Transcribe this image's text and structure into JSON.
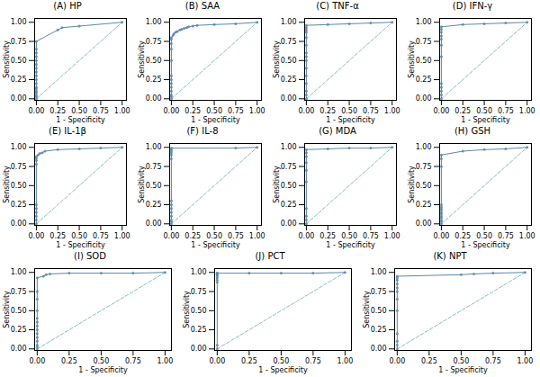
{
  "chart_data": [
    {
      "type": "line",
      "title": "(A) HP",
      "x_label": "1 - Specificity",
      "y_label": "Sensitivity",
      "xlim": [
        -0.02,
        1.05
      ],
      "ylim": [
        -0.02,
        1.05
      ],
      "xticks": [
        {
          "value": 0.0,
          "label": "0.00"
        },
        0.25,
        {
          "value": 0.5,
          "label": "0.50"
        },
        0.75,
        {
          "value": 1.0,
          "label": "1.00"
        }
      ],
      "yticks": [
        {
          "value": 0.0,
          "label": "0.00"
        },
        0.25,
        {
          "value": 0.5,
          "label": "0.50"
        },
        0.75,
        {
          "value": 1.0,
          "label": "1.00"
        }
      ],
      "series": [
        {
          "x": [
            0,
            1
          ],
          "values": [
            0,
            1
          ],
          "color": "#85bfbf",
          "line_style": "dashed"
        },
        {
          "x": [
            0.0,
            0.0,
            0.0,
            0.0,
            0.0,
            0.0,
            0.0,
            0.0,
            0.0,
            0.0,
            0.0,
            0.0,
            0.0,
            0.0,
            0.0,
            0.0,
            0.0,
            0.0,
            0.25,
            0.3,
            0.5,
            1.0
          ],
          "values": [
            0.0,
            0.03,
            0.05,
            0.08,
            0.1,
            0.13,
            0.15,
            0.2,
            0.25,
            0.3,
            0.35,
            0.4,
            0.45,
            0.5,
            0.55,
            0.6,
            0.65,
            0.75,
            0.9,
            0.93,
            0.95,
            1.0
          ],
          "color": "#5b87a8",
          "line_style": "solid",
          "marker": "circle"
        }
      ]
    },
    {
      "type": "line",
      "title": "(B) SAA",
      "x_label": "1 - Specificity",
      "y_label": "Sensitivity",
      "xlim": [
        -0.02,
        1.05
      ],
      "ylim": [
        -0.02,
        1.05
      ],
      "xticks": [
        {
          "value": 0.0,
          "label": "0.00"
        },
        0.25,
        {
          "value": 0.5,
          "label": "0.50"
        },
        0.75,
        {
          "value": 1.0,
          "label": "1.00"
        }
      ],
      "yticks": [
        {
          "value": 0.0,
          "label": "0.00"
        },
        0.25,
        {
          "value": 0.5,
          "label": "0.50"
        },
        0.75,
        {
          "value": 1.0,
          "label": "1.00"
        }
      ],
      "series": [
        {
          "x": [
            0,
            1
          ],
          "values": [
            0,
            1
          ],
          "color": "#85bfbf",
          "line_style": "dashed"
        },
        {
          "x": [
            0.0,
            0.0,
            0.0,
            0.0,
            0.0,
            0.0,
            0.0,
            0.0,
            0.0,
            0.0,
            0.0,
            0.0,
            0.0,
            0.02,
            0.03,
            0.05,
            0.07,
            0.1,
            0.12,
            0.15,
            0.18,
            0.2,
            0.25,
            0.3,
            0.5,
            0.75,
            1.0
          ],
          "values": [
            0.0,
            0.03,
            0.05,
            0.1,
            0.15,
            0.2,
            0.25,
            0.3,
            0.5,
            0.65,
            0.72,
            0.78,
            0.8,
            0.83,
            0.85,
            0.87,
            0.88,
            0.9,
            0.91,
            0.92,
            0.93,
            0.94,
            0.95,
            0.96,
            0.97,
            0.98,
            1.0
          ],
          "color": "#5b87a8",
          "line_style": "solid",
          "marker": "circle"
        }
      ]
    },
    {
      "type": "line",
      "title": "(C) TNF-α",
      "x_label": "1 - Specificity",
      "y_label": "Sensitivity",
      "xlim": [
        -0.02,
        1.05
      ],
      "ylim": [
        -0.02,
        1.05
      ],
      "xticks": [
        {
          "value": 0.0,
          "label": "0.00"
        },
        0.25,
        {
          "value": 0.5,
          "label": "0.50"
        },
        0.75,
        {
          "value": 1.0,
          "label": "1.00"
        }
      ],
      "yticks": [
        {
          "value": 0.0,
          "label": "0.00"
        },
        0.25,
        {
          "value": 0.5,
          "label": "0.50"
        },
        0.75,
        {
          "value": 1.0,
          "label": "1.00"
        }
      ],
      "series": [
        {
          "x": [
            0,
            1
          ],
          "values": [
            0,
            1
          ],
          "color": "#85bfbf",
          "line_style": "dashed"
        },
        {
          "x": [
            0.0,
            0.0,
            0.0,
            0.0,
            0.0,
            0.0,
            0.0,
            0.0,
            0.0,
            0.0,
            0.0,
            0.0,
            0.0,
            0.0,
            0.0,
            0.25,
            0.5,
            0.75,
            1.0
          ],
          "values": [
            0.0,
            0.05,
            0.1,
            0.2,
            0.3,
            0.4,
            0.5,
            0.55,
            0.6,
            0.7,
            0.8,
            0.87,
            0.9,
            0.93,
            0.96,
            0.97,
            0.98,
            0.99,
            1.0
          ],
          "color": "#5b87a8",
          "line_style": "solid",
          "marker": "circle"
        }
      ]
    },
    {
      "type": "line",
      "title": "(D) IFN-γ",
      "x_label": "1 - Specificity",
      "y_label": "Sensitivity",
      "xlim": [
        -0.02,
        1.05
      ],
      "ylim": [
        -0.02,
        1.05
      ],
      "xticks": [
        {
          "value": 0.0,
          "label": "0.00"
        },
        0.25,
        {
          "value": 0.5,
          "label": "0.50"
        },
        0.75,
        {
          "value": 1.0,
          "label": "1.00"
        }
      ],
      "yticks": [
        {
          "value": 0.0,
          "label": "0.00"
        },
        0.25,
        {
          "value": 0.5,
          "label": "0.50"
        },
        0.75,
        {
          "value": 1.0,
          "label": "1.00"
        }
      ],
      "series": [
        {
          "x": [
            0,
            1
          ],
          "values": [
            0,
            1
          ],
          "color": "#85bfbf",
          "line_style": "dashed"
        },
        {
          "x": [
            0.0,
            0.0,
            0.0,
            0.0,
            0.0,
            0.0,
            0.0,
            0.0,
            0.0,
            0.0,
            0.0,
            0.0,
            0.25,
            0.5,
            0.75,
            1.0
          ],
          "values": [
            0.0,
            0.05,
            0.1,
            0.15,
            0.2,
            0.55,
            0.7,
            0.78,
            0.82,
            0.87,
            0.91,
            0.94,
            0.97,
            0.98,
            0.99,
            1.0
          ],
          "color": "#5b87a8",
          "line_style": "solid",
          "marker": "circle"
        }
      ]
    },
    {
      "type": "line",
      "title": "(E) IL-1β",
      "x_label": "1 - Specificity",
      "y_label": "Sensitivity",
      "xlim": [
        -0.02,
        1.05
      ],
      "ylim": [
        -0.02,
        1.05
      ],
      "xticks": [
        {
          "value": 0.0,
          "label": "0.00"
        },
        0.25,
        {
          "value": 0.5,
          "label": "0.50"
        },
        0.75,
        {
          "value": 1.0,
          "label": "1.00"
        }
      ],
      "yticks": [
        {
          "value": 0.0,
          "label": "0.00"
        },
        0.25,
        {
          "value": 0.5,
          "label": "0.50"
        },
        0.75,
        {
          "value": 1.0,
          "label": "1.00"
        }
      ],
      "series": [
        {
          "x": [
            0,
            1
          ],
          "values": [
            0,
            1
          ],
          "color": "#85bfbf",
          "line_style": "dashed"
        },
        {
          "x": [
            0.0,
            0.0,
            0.0,
            0.0,
            0.0,
            0.0,
            0.0,
            0.0,
            0.0,
            0.0,
            0.02,
            0.04,
            0.07,
            0.1,
            0.25,
            0.5,
            0.75,
            1.0
          ],
          "values": [
            0.0,
            0.05,
            0.1,
            0.15,
            0.2,
            0.25,
            0.78,
            0.83,
            0.86,
            0.88,
            0.9,
            0.92,
            0.93,
            0.95,
            0.97,
            0.98,
            0.99,
            1.0
          ],
          "color": "#5b87a8",
          "line_style": "solid",
          "marker": "circle"
        }
      ]
    },
    {
      "type": "line",
      "title": "(F) IL-8",
      "x_label": "1 - Specificity",
      "y_label": "Sensitivity",
      "xlim": [
        -0.02,
        1.05
      ],
      "ylim": [
        -0.02,
        1.05
      ],
      "xticks": [
        {
          "value": 0.0,
          "label": "0.00"
        },
        0.25,
        {
          "value": 0.5,
          "label": "0.50"
        },
        0.75,
        {
          "value": 1.0,
          "label": "1.00"
        }
      ],
      "yticks": [
        {
          "value": 0.0,
          "label": "0.00"
        },
        0.25,
        {
          "value": 0.5,
          "label": "0.50"
        },
        0.75,
        {
          "value": 1.0,
          "label": "1.00"
        }
      ],
      "series": [
        {
          "x": [
            0,
            1
          ],
          "values": [
            0,
            1
          ],
          "color": "#85bfbf",
          "line_style": "dashed"
        },
        {
          "x": [
            0.0,
            0.0,
            0.0,
            0.0,
            0.0,
            0.0,
            0.0,
            0.0,
            0.0,
            0.0,
            0.0,
            0.0,
            0.0,
            0.0,
            0.75,
            1.0
          ],
          "values": [
            0.0,
            0.03,
            0.05,
            0.1,
            0.15,
            0.2,
            0.25,
            0.3,
            0.85,
            0.9,
            0.93,
            0.95,
            0.97,
            0.99,
            0.99,
            1.0
          ],
          "color": "#5b87a8",
          "line_style": "solid",
          "marker": "circle"
        }
      ]
    },
    {
      "type": "line",
      "title": "(G) MDA",
      "x_label": "1 - Specificity",
      "y_label": "Sensitivity",
      "xlim": [
        -0.02,
        1.05
      ],
      "ylim": [
        -0.02,
        1.05
      ],
      "xticks": [
        {
          "value": 0.0,
          "label": "0.00"
        },
        0.25,
        {
          "value": 0.5,
          "label": "0.50"
        },
        0.75,
        {
          "value": 1.0,
          "label": "1.00"
        }
      ],
      "yticks": [
        {
          "value": 0.0,
          "label": "0.00"
        },
        0.25,
        {
          "value": 0.5,
          "label": "0.50"
        },
        0.75,
        {
          "value": 1.0,
          "label": "1.00"
        }
      ],
      "series": [
        {
          "x": [
            0,
            1
          ],
          "values": [
            0,
            1
          ],
          "color": "#85bfbf",
          "line_style": "dashed"
        },
        {
          "x": [
            0.0,
            0.0,
            0.0,
            0.0,
            0.0,
            0.0,
            0.0,
            0.0,
            0.0,
            0.0,
            0.25,
            0.5,
            0.75,
            1.0
          ],
          "values": [
            0.0,
            0.05,
            0.1,
            0.2,
            0.55,
            0.7,
            0.8,
            0.88,
            0.93,
            0.97,
            0.98,
            0.99,
            0.99,
            1.0
          ],
          "color": "#5b87a8",
          "line_style": "solid",
          "marker": "circle"
        }
      ]
    },
    {
      "type": "line",
      "title": "(H) GSH",
      "x_label": "1 - Specificity",
      "y_label": "Sensitivity",
      "xlim": [
        -0.02,
        1.05
      ],
      "ylim": [
        -0.02,
        1.05
      ],
      "xticks": [
        {
          "value": 0.0,
          "label": "0.00"
        },
        0.25,
        {
          "value": 0.5,
          "label": "0.50"
        },
        0.75,
        {
          "value": 1.0,
          "label": "1.00"
        }
      ],
      "yticks": [
        {
          "value": 0.0,
          "label": "0.00"
        },
        0.25,
        {
          "value": 0.5,
          "label": "0.50"
        },
        0.75,
        {
          "value": 1.0,
          "label": "1.00"
        }
      ],
      "series": [
        {
          "x": [
            0,
            1
          ],
          "values": [
            0,
            1
          ],
          "color": "#85bfbf",
          "line_style": "dashed"
        },
        {
          "x": [
            0.0,
            0.0,
            0.0,
            0.0,
            0.0,
            0.0,
            0.0,
            0.0,
            0.0,
            0.0,
            0.0,
            0.0,
            0.0,
            0.0,
            0.25,
            0.5,
            0.75,
            1.0
          ],
          "values": [
            0.0,
            0.03,
            0.05,
            0.08,
            0.1,
            0.13,
            0.15,
            0.18,
            0.2,
            0.22,
            0.25,
            0.75,
            0.85,
            0.9,
            0.95,
            0.97,
            0.98,
            1.0
          ],
          "color": "#5b87a8",
          "line_style": "solid",
          "marker": "circle"
        }
      ]
    },
    {
      "type": "line",
      "title": "(I) SOD",
      "x_label": "1 - Specificity",
      "y_label": "Sensitivity",
      "xlim": [
        -0.02,
        1.05
      ],
      "ylim": [
        -0.02,
        1.05
      ],
      "xticks": [
        {
          "value": 0.0,
          "label": "0.00"
        },
        0.25,
        {
          "value": 0.5,
          "label": "0.50"
        },
        0.75,
        {
          "value": 1.0,
          "label": "1.00"
        }
      ],
      "yticks": [
        {
          "value": 0.0,
          "label": "0.00"
        },
        0.25,
        {
          "value": 0.5,
          "label": "0.50"
        },
        0.75,
        {
          "value": 1.0,
          "label": "1.00"
        }
      ],
      "series": [
        {
          "x": [
            0,
            1
          ],
          "values": [
            0,
            1
          ],
          "color": "#85bfbf",
          "line_style": "dashed"
        },
        {
          "x": [
            0.0,
            0.0,
            0.0,
            0.0,
            0.0,
            0.0,
            0.0,
            0.0,
            0.0,
            0.0,
            0.0,
            0.0,
            0.0,
            0.0,
            0.05,
            0.07,
            0.1,
            0.25,
            0.5,
            0.75,
            1.0
          ],
          "values": [
            0.0,
            0.03,
            0.05,
            0.1,
            0.15,
            0.2,
            0.25,
            0.3,
            0.35,
            0.4,
            0.5,
            0.65,
            0.75,
            0.93,
            0.95,
            0.97,
            0.98,
            0.99,
            0.99,
            0.99,
            1.0
          ],
          "color": "#5b87a8",
          "line_style": "solid",
          "marker": "circle"
        }
      ]
    },
    {
      "type": "line",
      "title": "(J) PCT",
      "x_label": "1 - Specificity",
      "y_label": "Sensitivity",
      "xlim": [
        -0.02,
        1.05
      ],
      "ylim": [
        -0.02,
        1.05
      ],
      "xticks": [
        {
          "value": 0.0,
          "label": "0.00"
        },
        0.25,
        {
          "value": 0.5,
          "label": "0.50"
        },
        0.75,
        {
          "value": 1.0,
          "label": "1.00"
        }
      ],
      "yticks": [
        {
          "value": 0.0,
          "label": "0.00"
        },
        0.25,
        {
          "value": 0.5,
          "label": "0.50"
        },
        0.75,
        {
          "value": 1.0,
          "label": "1.00"
        }
      ],
      "series": [
        {
          "x": [
            0,
            1
          ],
          "values": [
            0,
            1
          ],
          "color": "#85bfbf",
          "line_style": "dashed"
        },
        {
          "x": [
            0.0,
            0.0,
            0.0,
            0.0,
            0.0,
            0.0,
            0.0,
            0.0,
            0.0,
            0.0,
            0.25,
            0.5,
            0.75,
            1.0
          ],
          "values": [
            0.0,
            0.05,
            0.87,
            0.9,
            0.93,
            0.95,
            0.97,
            0.98,
            0.99,
            0.99,
            0.99,
            0.99,
            0.99,
            1.0
          ],
          "color": "#5b87a8",
          "line_style": "solid",
          "marker": "circle"
        }
      ]
    },
    {
      "type": "line",
      "title": "(K) NPT",
      "x_label": "1 - Specificity",
      "y_label": "Sensitivity",
      "xlim": [
        -0.02,
        1.05
      ],
      "ylim": [
        -0.02,
        1.05
      ],
      "xticks": [
        {
          "value": 0.0,
          "label": "0.00"
        },
        0.25,
        {
          "value": 0.5,
          "label": "0.50"
        },
        0.75,
        {
          "value": 1.0,
          "label": "1.00"
        }
      ],
      "yticks": [
        {
          "value": 0.0,
          "label": "0.00"
        },
        0.25,
        {
          "value": 0.5,
          "label": "0.50"
        },
        0.75,
        {
          "value": 1.0,
          "label": "1.00"
        }
      ],
      "series": [
        {
          "x": [
            0,
            1
          ],
          "values": [
            0,
            1
          ],
          "color": "#85bfbf",
          "line_style": "dashed"
        },
        {
          "x": [
            0.0,
            0.0,
            0.0,
            0.0,
            0.0,
            0.0,
            0.0,
            0.0,
            0.0,
            0.0,
            0.0,
            0.0,
            0.5,
            0.6,
            0.75,
            1.0
          ],
          "values": [
            0.0,
            0.05,
            0.1,
            0.2,
            0.5,
            0.65,
            0.75,
            0.8,
            0.85,
            0.9,
            0.93,
            0.95,
            0.97,
            0.98,
            0.99,
            1.0
          ],
          "color": "#5b87a8",
          "line_style": "solid",
          "marker": "circle"
        }
      ]
    }
  ]
}
